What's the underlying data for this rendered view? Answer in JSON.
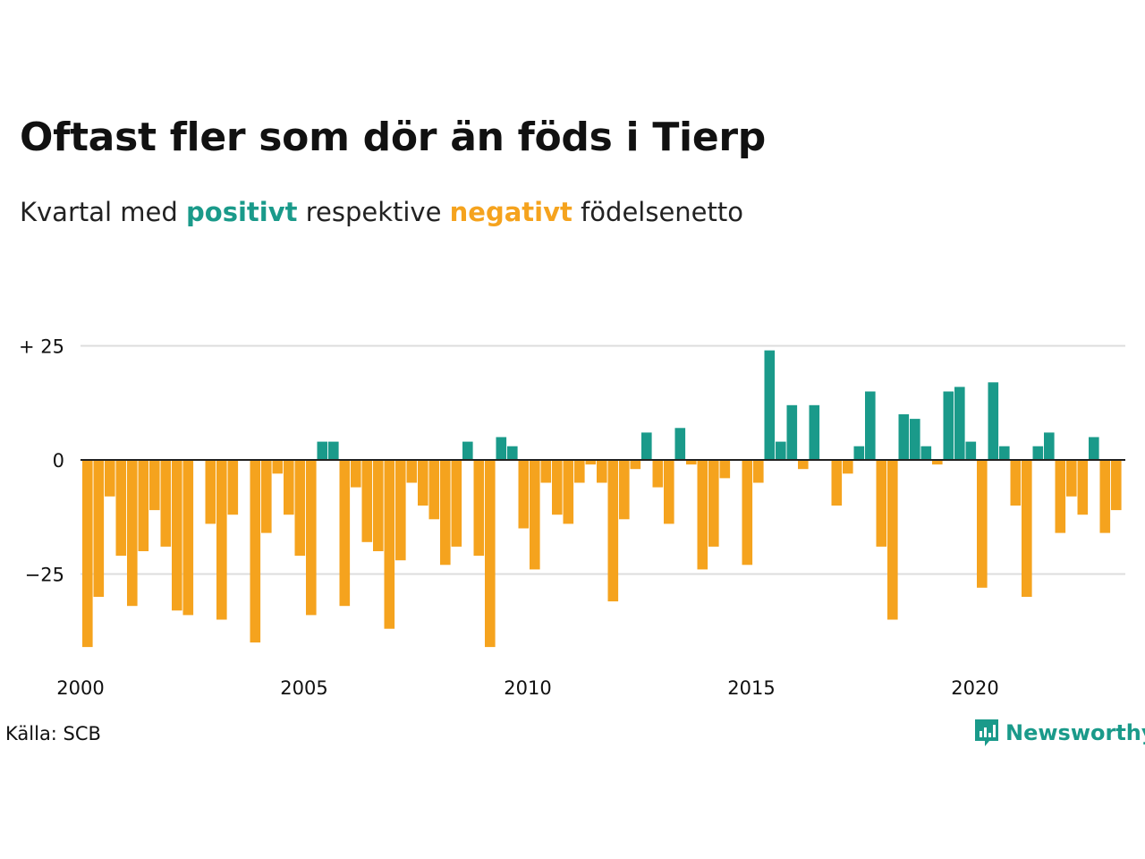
{
  "title": "Oftast fler som dör än föds i Tierp",
  "subtitle": {
    "part1": "Kvartal med ",
    "positive_word": "positivt",
    "part2": " respektive ",
    "negative_word": "negativt",
    "part3": " födelsenetto"
  },
  "source": "Källa: SCB",
  "brand": "Newsworthy",
  "colors": {
    "positive": "#1a9a8a",
    "negative": "#f5a31e",
    "grid": "#dddddd",
    "baseline": "#222222"
  },
  "chart_data": {
    "type": "bar",
    "title": "",
    "xlabel": "",
    "ylabel": "",
    "ylim": [
      -42,
      27
    ],
    "x_range": [
      2000,
      2023.75
    ],
    "y_ticks": [
      {
        "value": 25,
        "label": "+ 25"
      },
      {
        "value": 0,
        "label": "0"
      },
      {
        "value": -25,
        "label": "−25"
      }
    ],
    "x_ticks": [
      {
        "value": 2000,
        "label": "2000"
      },
      {
        "value": 2005,
        "label": "2005"
      },
      {
        "value": 2010,
        "label": "2010"
      },
      {
        "value": 2015,
        "label": "2015"
      },
      {
        "value": 2020,
        "label": "2020"
      }
    ],
    "series": [
      {
        "start": "2000Q1",
        "frequency": "quarter",
        "values": [
          -41,
          -30,
          -8,
          -21,
          -32,
          -20,
          -11,
          -19,
          -33,
          -34,
          0,
          -14,
          -35,
          -12,
          0,
          -40,
          -16,
          -3,
          -12,
          -21,
          -34,
          4,
          4,
          -32,
          -6,
          -18,
          -20,
          -37,
          -22,
          -5,
          -10,
          -13,
          -23,
          -19,
          4,
          -21,
          -41,
          5,
          3,
          -15,
          -24,
          -5,
          -12,
          -14,
          -5,
          -1,
          -5,
          -31,
          -13,
          -2,
          6,
          -6,
          -14,
          7,
          -1,
          -24,
          -19,
          -4,
          0,
          -23,
          -5,
          24,
          4,
          12,
          -2,
          12,
          0,
          -10,
          -3,
          3,
          15,
          -19,
          -35,
          10,
          9,
          3,
          -1,
          15,
          16,
          4,
          -28,
          17,
          3,
          -10,
          -30,
          3,
          6,
          -16,
          -8,
          -12,
          5,
          -16,
          -11
        ]
      }
    ]
  }
}
